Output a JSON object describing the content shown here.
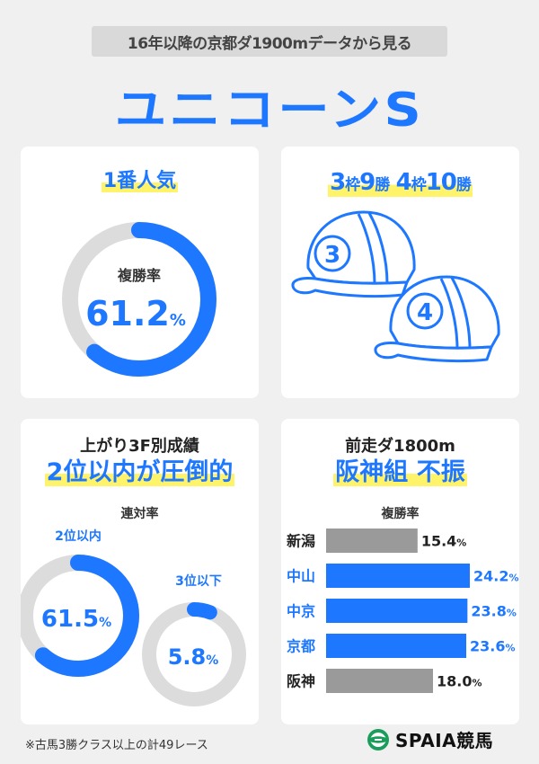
{
  "subtitle": "16年以降の京都ダ1900mデータから見る",
  "title": "ユニコーンS",
  "panel_popular": {
    "heading": "1番人気",
    "metric_label": "複勝率",
    "value_num": "61.2",
    "value_unit": "%",
    "fraction": 0.612
  },
  "panel_gate": {
    "heading_parts": [
      "3",
      "枠",
      "9",
      "勝",
      " ",
      "4",
      "枠",
      "10",
      "勝"
    ],
    "cap_numbers": [
      "3",
      "4"
    ]
  },
  "panel_agari": {
    "heading_line1": "上がり3F別成績",
    "heading_line2": "2位以内が圧倒的",
    "metric_label": "連対率",
    "rings": [
      {
        "label": "2位以内",
        "value_num": "61.5",
        "value_unit": "%",
        "fraction": 0.615
      },
      {
        "label": "3位以下",
        "value_num": "5.8",
        "value_unit": "%",
        "fraction": 0.058
      }
    ]
  },
  "panel_prev": {
    "heading_line1": "前走ダ1800m",
    "heading_line2": "阪神組 不振",
    "metric_label": "複勝率"
  },
  "chart_data": {
    "type": "bar",
    "orientation": "horizontal",
    "title": "",
    "categories": [
      "新潟",
      "中山",
      "中京",
      "京都",
      "阪神"
    ],
    "values": [
      15.4,
      24.2,
      23.8,
      23.6,
      18.0
    ],
    "value_labels": [
      "15.4",
      "24.2",
      "23.8",
      "23.6",
      "18.0"
    ],
    "unit": "%",
    "highlighted": [
      false,
      true,
      true,
      true,
      false
    ]
  },
  "footnote": "※古馬3勝クラス以上の計49レース",
  "logo": {
    "text": "SPAIA競馬"
  },
  "colors": {
    "accent": "#1e78ff",
    "track": "#dcdcdc",
    "muted_bar": "#9a9a9a",
    "highlight": "#fff36a"
  }
}
